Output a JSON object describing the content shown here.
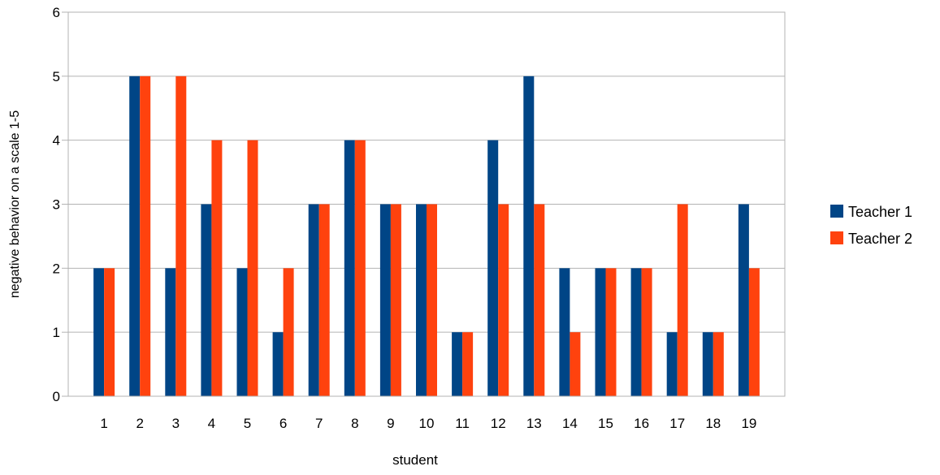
{
  "chart_data": {
    "type": "bar",
    "title": "",
    "xlabel": "student",
    "ylabel": "negative behavior on a scale 1-5",
    "categories": [
      "1",
      "2",
      "3",
      "4",
      "5",
      "6",
      "7",
      "8",
      "9",
      "10",
      "11",
      "12",
      "13",
      "14",
      "15",
      "16",
      "17",
      "18",
      "19"
    ],
    "ylim": [
      0,
      6
    ],
    "yticks": [
      0,
      1,
      2,
      3,
      4,
      5,
      6
    ],
    "grid": true,
    "legend_position": "right",
    "series": [
      {
        "name": "Teacher 1",
        "color": "#004586",
        "values": [
          2,
          5,
          2,
          3,
          2,
          1,
          3,
          4,
          3,
          3,
          1,
          4,
          5,
          2,
          2,
          2,
          1,
          1,
          3
        ]
      },
      {
        "name": "Teacher 2",
        "color": "#ff420e",
        "values": [
          2,
          5,
          5,
          4,
          4,
          2,
          3,
          4,
          3,
          3,
          1,
          3,
          3,
          1,
          2,
          2,
          3,
          1,
          2
        ]
      }
    ]
  }
}
